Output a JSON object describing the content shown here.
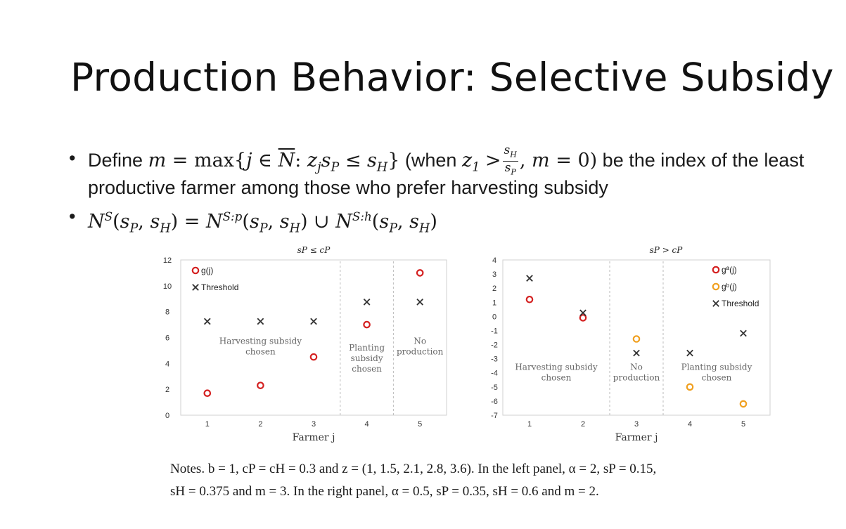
{
  "slide": {
    "title": "Production Behavior: Selective Subsidy",
    "bullets": [
      {
        "define_word": "Define",
        "formula_a": "m = max{j ∈ N̄: z",
        "when": "(when",
        "z1": "z",
        "gt": ">",
        "frac_num": "s",
        "frac_den": "s",
        "m0": ", m = 0)",
        "rest": "be the index of the least",
        "line2": "productive farmer among those who prefer harvesting subsidy"
      },
      {
        "formula": "N^S(s_P, s_H) = N^{S:p}(s_P, s_H) ∪ N^{S:h}(s_P, s_H)"
      }
    ],
    "notes_line1": "Notes.  b = 1, cP = cH = 0.3 and z = (1, 1.5, 2.1, 2.8, 3.6).  In the left panel, α = 2, sP = 0.15,",
    "notes_line2": "sH = 0.375 and m = 3. In the right panel, α = 0.5, sP = 0.35, sH = 0.6 and m = 2."
  },
  "chart_data": [
    {
      "type": "scatter",
      "title": "sP ≤ cP",
      "xlabel": "Farmer j",
      "ylabel": "",
      "x": [
        1,
        2,
        3,
        4,
        5
      ],
      "xlim": [
        0.5,
        5.5
      ],
      "ylim": [
        0,
        12
      ],
      "yticks": [
        "0",
        "2",
        "4",
        "6",
        "8",
        "10",
        "12"
      ],
      "xticks": [
        "1",
        "2",
        "3",
        "4",
        "5"
      ],
      "legend": {
        "placement": "top-left",
        "entries": [
          "g(j)",
          "Threshold"
        ]
      },
      "series": [
        {
          "name": "g(j)",
          "marker": "circle",
          "color": "#d42020",
          "values": [
            1.7,
            2.3,
            4.5,
            7.0,
            11.0
          ]
        },
        {
          "name": "Threshold",
          "marker": "cross",
          "color": "#333333",
          "values": [
            7.25,
            7.25,
            7.25,
            8.75,
            8.75
          ]
        }
      ],
      "region_labels": [
        {
          "lines": [
            "Harvesting subsidy",
            "chosen"
          ],
          "x": 2.0,
          "y": 5.5
        },
        {
          "lines": [
            "Planting",
            "subsidy",
            "chosen"
          ],
          "x": 4.0,
          "y": 5.0
        },
        {
          "lines": [
            "No",
            "production"
          ],
          "x": 5.0,
          "y": 5.5
        }
      ],
      "dividers_x": [
        3.5,
        4.5
      ]
    },
    {
      "type": "scatter",
      "title": "sP > cP",
      "xlabel": "Farmer j",
      "ylabel": "",
      "x": [
        1,
        2,
        3,
        4,
        5
      ],
      "xlim": [
        0.5,
        5.5
      ],
      "ylim": [
        -7,
        4
      ],
      "yticks": [
        "-7",
        "-6",
        "-5",
        "-4",
        "-3",
        "-2",
        "-1",
        "0",
        "1",
        "2",
        "3",
        "4"
      ],
      "xticks": [
        "1",
        "2",
        "3",
        "4",
        "5"
      ],
      "legend": {
        "placement": "top-right",
        "entries": [
          "gª(j)",
          "gᵇ(j)",
          "Threshold"
        ]
      },
      "series": [
        {
          "name": "gª(j)",
          "marker": "circle",
          "color": "#d42020",
          "values": [
            1.2,
            -0.1,
            null,
            null,
            null
          ]
        },
        {
          "name": "gᵇ(j)",
          "marker": "circle",
          "color": "#f0a020",
          "values": [
            null,
            null,
            -1.6,
            -5.0,
            -6.2
          ]
        },
        {
          "name": "Threshold",
          "marker": "cross",
          "color": "#333333",
          "values": [
            2.7,
            0.25,
            -2.6,
            -2.6,
            -1.2
          ]
        }
      ],
      "region_labels": [
        {
          "lines": [
            "Harvesting subsidy",
            "chosen"
          ],
          "x": 1.5,
          "y": -3.8
        },
        {
          "lines": [
            "No",
            "production"
          ],
          "x": 3.0,
          "y": -3.8
        },
        {
          "lines": [
            "Planting subsidy",
            "chosen"
          ],
          "x": 4.5,
          "y": -3.8
        }
      ],
      "dividers_x": [
        2.5,
        3.5
      ]
    }
  ]
}
